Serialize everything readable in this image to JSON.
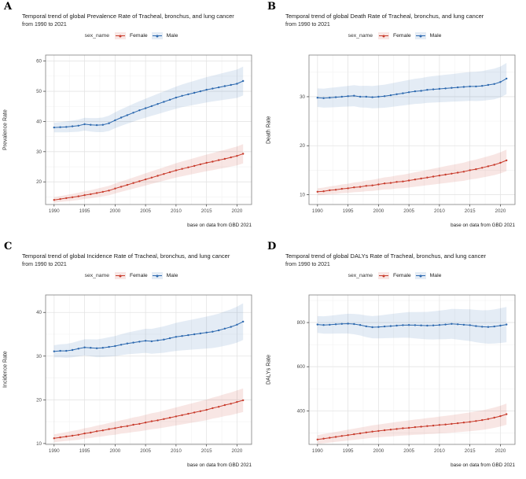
{
  "caption": "base on data from GBD 2021",
  "legend": {
    "title": "sex_name",
    "female_label": "Female",
    "male_label": "Male"
  },
  "colors": {
    "female": "#c83c2d",
    "male": "#2d69af",
    "female_band": "rgba(200,60,45,0.13)",
    "male_band": "rgba(45,105,175,0.13)",
    "grid_major": "#e4e4e4",
    "grid_minor": "#f2f2f2",
    "panel_border": "#7f7f7f",
    "axis_text": "#4d4d4d",
    "tick_mark": "#333333"
  },
  "years": [
    1990,
    1991,
    1992,
    1993,
    1994,
    1995,
    1996,
    1997,
    1998,
    1999,
    2000,
    2001,
    2002,
    2003,
    2004,
    2005,
    2006,
    2007,
    2008,
    2009,
    2010,
    2011,
    2012,
    2013,
    2014,
    2015,
    2016,
    2017,
    2018,
    2019,
    2020,
    2021
  ],
  "x_tick_years": [
    1990,
    1995,
    2000,
    2005,
    2010,
    2015,
    2020
  ],
  "chart_data": [
    {
      "type": "line",
      "panel_label": "A",
      "title": "Temporal trend of global Prevalence Rate of Tracheal, bronchus, and lung cancer",
      "subtitle": "from 1990 to 2021",
      "ylabel": "Prevalence Rate",
      "xlabel": "",
      "yticks": [
        20,
        30,
        40,
        50,
        60
      ],
      "ylim": [
        12.5,
        62
      ],
      "legend_position": "top",
      "grid": true,
      "series": [
        {
          "name": "Female",
          "color_key": "female",
          "band": [
            0.9,
            3.2
          ],
          "values": [
            14.0,
            14.3,
            14.6,
            14.9,
            15.2,
            15.6,
            15.9,
            16.3,
            16.7,
            17.1,
            17.8,
            18.4,
            19.0,
            19.6,
            20.2,
            20.8,
            21.4,
            22.0,
            22.6,
            23.2,
            23.8,
            24.3,
            24.8,
            25.3,
            25.8,
            26.3,
            26.7,
            27.2,
            27.6,
            28.1,
            28.6,
            29.3
          ]
        },
        {
          "name": "Male",
          "color_key": "male",
          "band": [
            1.6,
            4.8
          ],
          "values": [
            38.0,
            38.1,
            38.2,
            38.4,
            38.6,
            39.1,
            38.9,
            38.8,
            38.9,
            39.4,
            40.4,
            41.3,
            42.1,
            42.9,
            43.7,
            44.4,
            45.1,
            45.8,
            46.5,
            47.2,
            47.9,
            48.5,
            49.0,
            49.5,
            50.0,
            50.5,
            50.9,
            51.3,
            51.7,
            52.1,
            52.5,
            53.4
          ]
        }
      ]
    },
    {
      "type": "line",
      "panel_label": "B",
      "title": "Temporal trend of global Death Rate of Tracheal, bronchus, and lung cancer",
      "subtitle": "from 1990 to 2021",
      "ylabel": "Death Rate",
      "xlabel": "",
      "yticks": [
        10,
        20,
        30
      ],
      "ylim": [
        8,
        38.5
      ],
      "legend_position": "top",
      "grid": true,
      "series": [
        {
          "name": "Female",
          "color_key": "female",
          "band": [
            0.7,
            2.2
          ],
          "values": [
            10.6,
            10.7,
            10.9,
            11.0,
            11.2,
            11.3,
            11.5,
            11.6,
            11.8,
            11.9,
            12.1,
            12.3,
            12.4,
            12.6,
            12.7,
            12.9,
            13.1,
            13.3,
            13.5,
            13.7,
            13.9,
            14.1,
            14.3,
            14.5,
            14.7,
            15.0,
            15.2,
            15.5,
            15.8,
            16.1,
            16.5,
            17.0
          ]
        },
        {
          "name": "Male",
          "color_key": "male",
          "band": [
            1.9,
            3.2
          ],
          "values": [
            29.8,
            29.7,
            29.8,
            29.9,
            30.0,
            30.1,
            30.2,
            30.0,
            30.0,
            29.9,
            30.0,
            30.1,
            30.3,
            30.5,
            30.7,
            30.9,
            31.1,
            31.2,
            31.4,
            31.5,
            31.6,
            31.7,
            31.8,
            31.9,
            32.0,
            32.1,
            32.1,
            32.2,
            32.4,
            32.6,
            33.0,
            33.7
          ]
        }
      ]
    },
    {
      "type": "line",
      "panel_label": "C",
      "title": "Temporal trend of global Incidence Rate of Tracheal, bronchus, and lung cancer",
      "subtitle": "from 1990 to 2021",
      "ylabel": "Incidence Rate",
      "xlabel": "",
      "yticks": [
        10,
        20,
        30,
        40
      ],
      "ylim": [
        9.8,
        44
      ],
      "legend_position": "top",
      "grid": true,
      "series": [
        {
          "name": "Female",
          "color_key": "female",
          "band": [
            0.9,
            2.7
          ],
          "values": [
            11.2,
            11.4,
            11.6,
            11.8,
            12.0,
            12.3,
            12.5,
            12.8,
            13.0,
            13.3,
            13.5,
            13.8,
            14.0,
            14.3,
            14.5,
            14.8,
            15.1,
            15.3,
            15.6,
            15.9,
            16.2,
            16.5,
            16.8,
            17.1,
            17.4,
            17.7,
            18.1,
            18.4,
            18.8,
            19.1,
            19.5,
            19.9
          ]
        },
        {
          "name": "Male",
          "color_key": "male",
          "band": [
            1.4,
            4.2
          ],
          "values": [
            31.1,
            31.2,
            31.2,
            31.4,
            31.7,
            32.0,
            31.9,
            31.8,
            31.9,
            32.1,
            32.3,
            32.6,
            32.9,
            33.1,
            33.3,
            33.5,
            33.4,
            33.6,
            33.8,
            34.1,
            34.4,
            34.6,
            34.8,
            35.0,
            35.2,
            35.4,
            35.6,
            35.9,
            36.3,
            36.7,
            37.2,
            37.9
          ]
        }
      ]
    },
    {
      "type": "line",
      "panel_label": "D",
      "title": "Temporal trend of global DALYs Rate of Tracheal, bronchus, and lung cancer",
      "subtitle": "from 1990 to 2021",
      "ylabel": "DALYs Rate",
      "xlabel": "",
      "yticks": [
        400,
        600,
        800
      ],
      "ylim": [
        248,
        925
      ],
      "legend_position": "top",
      "grid": true,
      "series": [
        {
          "name": "Female",
          "color_key": "female",
          "band": [
            20,
            48
          ],
          "values": [
            270,
            274,
            278,
            282,
            286,
            290,
            294,
            298,
            302,
            306,
            309,
            312,
            315,
            318,
            321,
            323,
            326,
            328,
            331,
            333,
            336,
            338,
            341,
            344,
            347,
            350,
            354,
            358,
            363,
            369,
            376,
            385
          ]
        },
        {
          "name": "Male",
          "color_key": "male",
          "band": [
            38,
            80
          ],
          "values": [
            791,
            789,
            790,
            792,
            794,
            795,
            793,
            789,
            783,
            779,
            780,
            782,
            784,
            786,
            788,
            789,
            788,
            787,
            786,
            787,
            789,
            791,
            794,
            792,
            790,
            788,
            784,
            781,
            780,
            782,
            786,
            791
          ]
        }
      ]
    }
  ]
}
